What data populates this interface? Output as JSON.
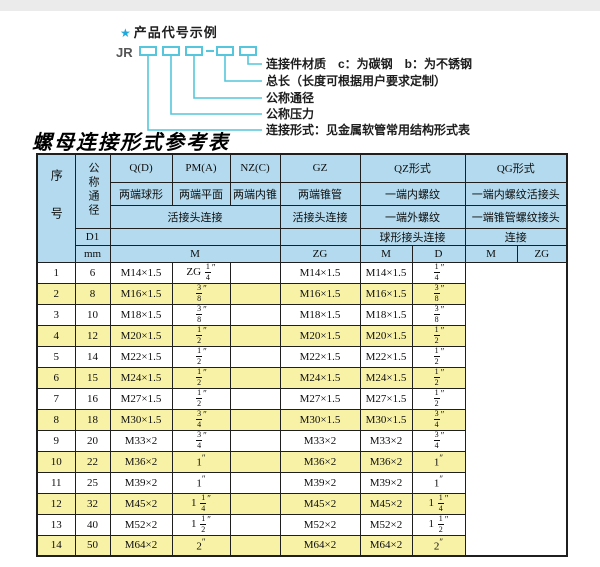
{
  "colors": {
    "accent": "#55C6DB",
    "star": "#1FA8DC",
    "header_bg": "#B3DAEE",
    "stripe_bg": "#F8F2A6"
  },
  "diagram": {
    "star": "★",
    "heading": "产品代号示例",
    "prefix": "JR",
    "labels": [
      "连接件材质　c：为碳钢　b：为不锈钢",
      "总长（长度可根据用户要求定制）",
      "公称通径",
      "公称压力",
      "连接形式：见金属软管常用结构形式表"
    ]
  },
  "table": {
    "title": "螺母连接形式参考表",
    "header": {
      "seq": "序号",
      "dn": "公称通径",
      "d1": "D1",
      "mm": "mm",
      "col_groups": [
        "Q(D)",
        "PM(A)",
        "NZ(C)",
        "GZ",
        "QZ形式",
        "QG形式"
      ],
      "row2": [
        "两端球形",
        "两端平面",
        "两端内锥",
        "两端锥管",
        "一端内螺纹",
        "一端内螺纹活接头"
      ],
      "row3": [
        "活接头连接",
        "活接头连接",
        "一端外螺纹",
        "一端锥管螺纹接头"
      ],
      "row4": [
        "球形接头连接",
        "连接"
      ],
      "row5": [
        "M",
        "ZG",
        "M",
        "D",
        "M",
        "ZG"
      ]
    },
    "rows": [
      [
        "1",
        "6",
        "M14×1.5",
        "ZG 1/4″",
        "",
        "M14×1.5",
        "M14×1.5",
        "1/4″"
      ],
      [
        "2",
        "8",
        "M16×1.5",
        "3/8″",
        "",
        "M16×1.5",
        "M16×1.5",
        "3/8″"
      ],
      [
        "3",
        "10",
        "M18×1.5",
        "3/8″",
        "",
        "M18×1.5",
        "M18×1.5",
        "3/8″"
      ],
      [
        "4",
        "12",
        "M20×1.5",
        "1/2″",
        "",
        "M20×1.5",
        "M20×1.5",
        "1/2″"
      ],
      [
        "5",
        "14",
        "M22×1.5",
        "1/2″",
        "",
        "M22×1.5",
        "M22×1.5",
        "1/2″"
      ],
      [
        "6",
        "15",
        "M24×1.5",
        "1/2″",
        "",
        "M24×1.5",
        "M24×1.5",
        "1/2″"
      ],
      [
        "7",
        "16",
        "M27×1.5",
        "1/2″",
        "",
        "M27×1.5",
        "M27×1.5",
        "1/2″"
      ],
      [
        "8",
        "18",
        "M30×1.5",
        "3/4″",
        "",
        "M30×1.5",
        "M30×1.5",
        "3/4″"
      ],
      [
        "9",
        "20",
        "M33×2",
        "3/4″",
        "",
        "M33×2",
        "M33×2",
        "3/4″"
      ],
      [
        "10",
        "22",
        "M36×2",
        "1″",
        "",
        "M36×2",
        "M36×2",
        "1″"
      ],
      [
        "11",
        "25",
        "M39×2",
        "1″",
        "",
        "M39×2",
        "M39×2",
        "1″"
      ],
      [
        "12",
        "32",
        "M45×2",
        "1 1/4″",
        "",
        "M45×2",
        "M45×2",
        "1 1/4″"
      ],
      [
        "13",
        "40",
        "M52×2",
        "1 1/2″",
        "",
        "M52×2",
        "M52×2",
        "1 1/2″"
      ],
      [
        "14",
        "50",
        "M64×2",
        "2″",
        "",
        "M64×2",
        "M64×2",
        "2″"
      ]
    ]
  }
}
